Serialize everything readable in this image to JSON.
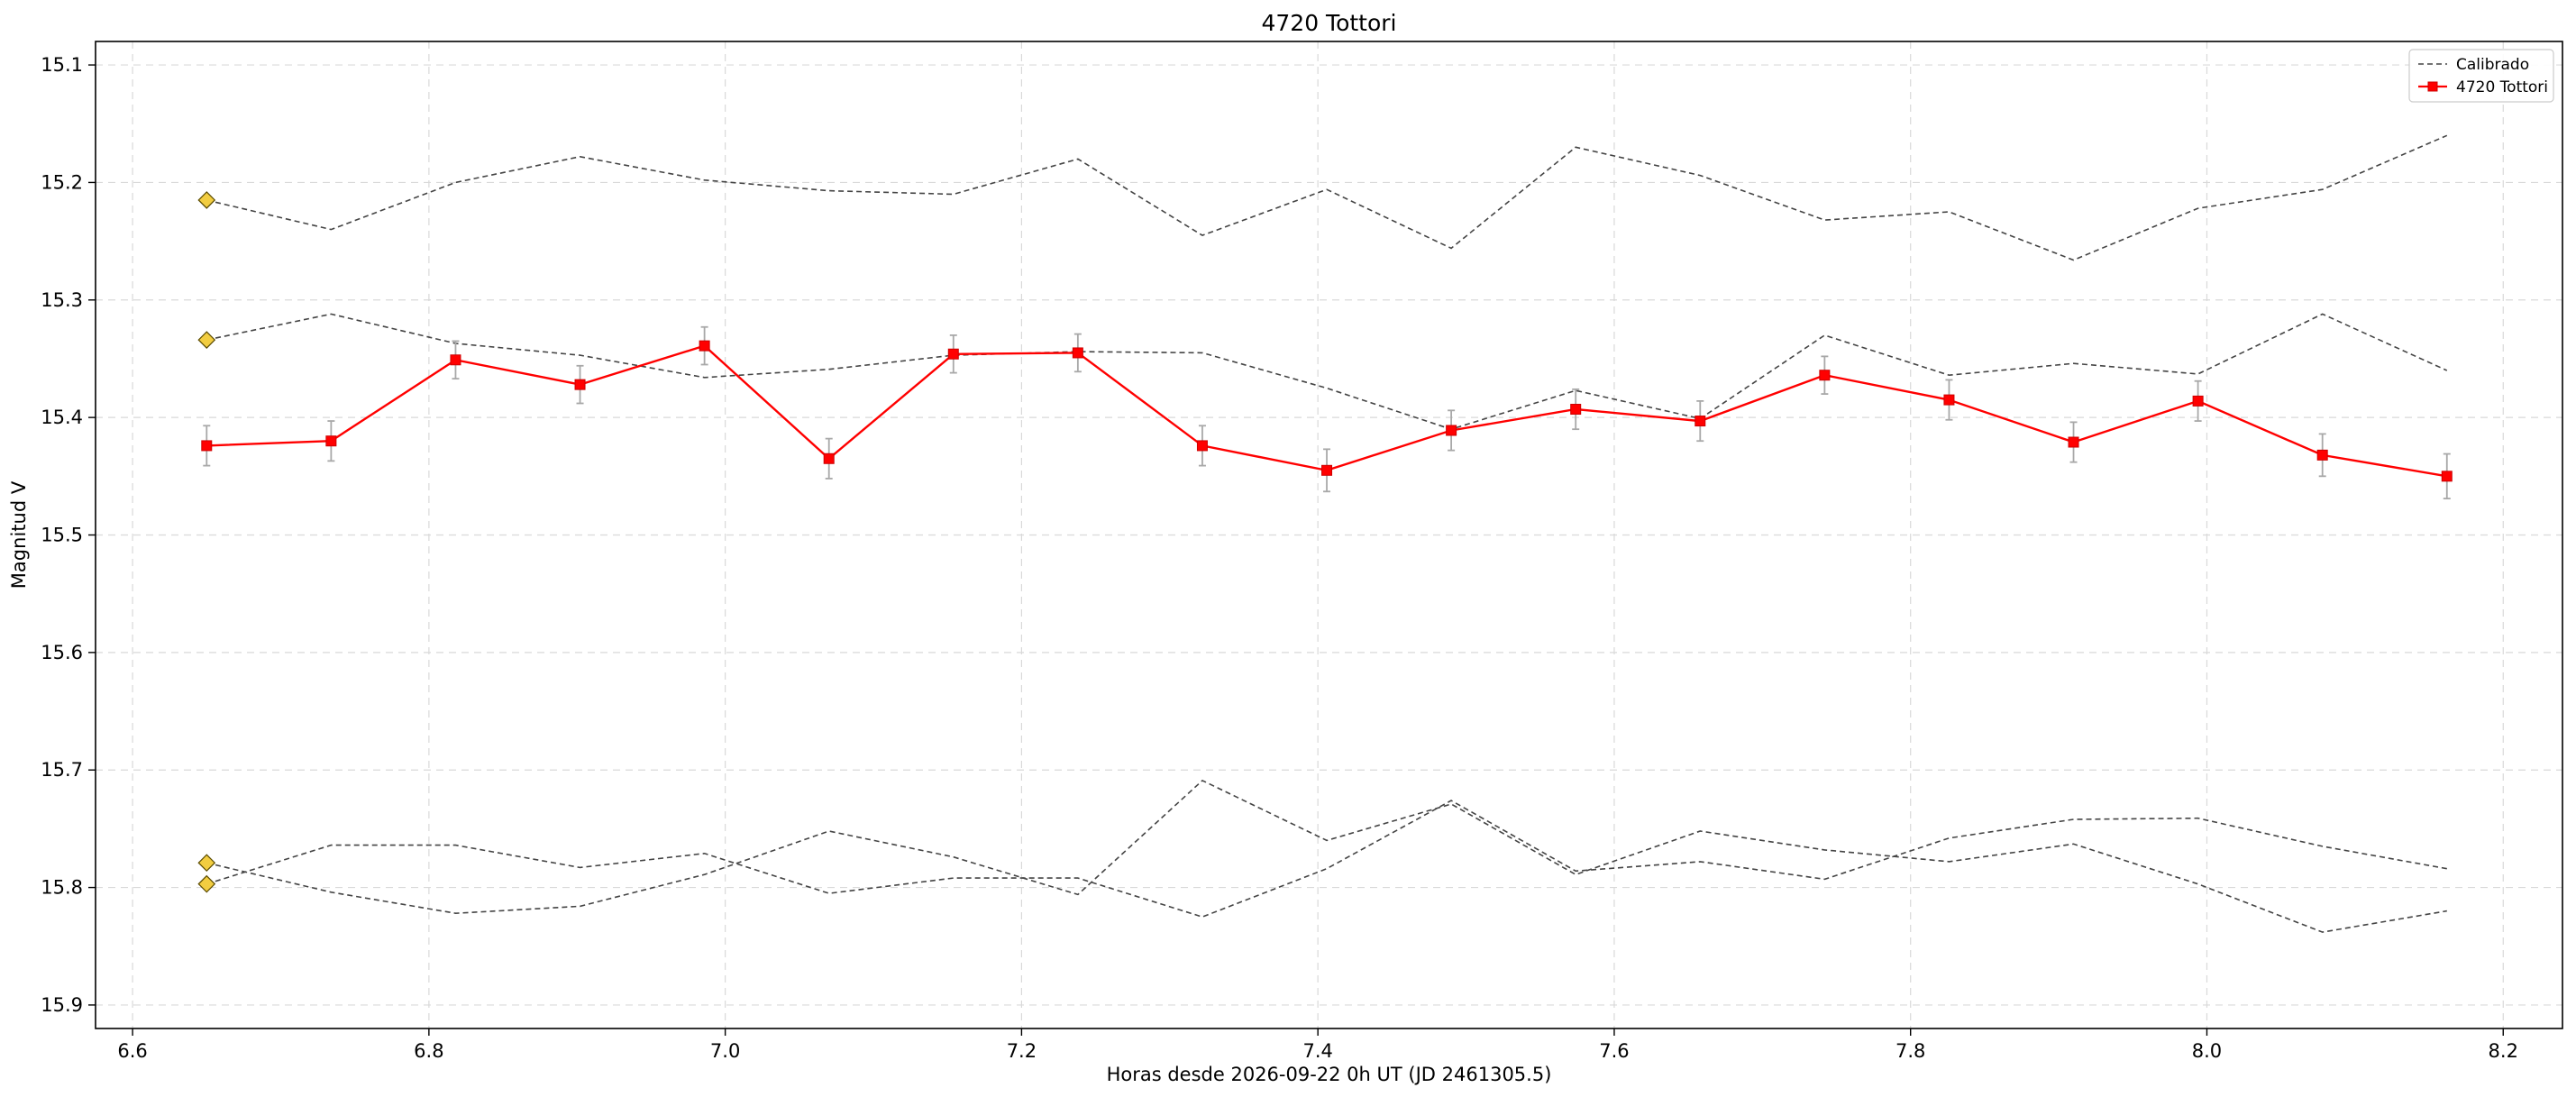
{
  "chart_data": {
    "type": "line",
    "title": "4720 Tottori",
    "xlabel": "Horas desde 2026-09-22 0h UT (JD 2461305.5)",
    "ylabel": "Magnitud V",
    "xlim": [
      6.575,
      8.24
    ],
    "ylim": [
      15.92,
      15.08
    ],
    "y_inverted": true,
    "grid": true,
    "legend_position": "top-right",
    "xticks": [
      "6.6",
      "6.8",
      "7.0",
      "7.2",
      "7.4",
      "7.6",
      "7.8",
      "8.0",
      "8.2"
    ],
    "xtick_values": [
      6.6,
      6.8,
      7.0,
      7.2,
      7.4,
      7.6,
      7.8,
      8.0,
      8.2
    ],
    "yticks": [
      "15.1",
      "15.2",
      "15.3",
      "15.4",
      "15.5",
      "15.6",
      "15.7",
      "15.8",
      "15.9"
    ],
    "ytick_values": [
      15.1,
      15.2,
      15.3,
      15.4,
      15.5,
      15.6,
      15.7,
      15.8,
      15.9
    ],
    "x": [
      6.65,
      6.734,
      6.818,
      6.902,
      6.986,
      7.07,
      7.154,
      7.238,
      7.322,
      7.406,
      7.49,
      7.574,
      7.658,
      7.742,
      7.826,
      7.91,
      7.994,
      8.078,
      8.162
    ],
    "target": {
      "name": "4720 Tottori",
      "color": "#ff0000",
      "values": [
        15.424,
        15.42,
        15.351,
        15.372,
        15.339,
        15.435,
        15.346,
        15.345,
        15.424,
        15.445,
        15.411,
        15.393,
        15.403,
        15.364,
        15.385,
        15.421,
        15.386,
        15.432,
        15.45
      ],
      "errors": [
        0.017,
        0.017,
        0.016,
        0.016,
        0.016,
        0.017,
        0.016,
        0.016,
        0.017,
        0.018,
        0.017,
        0.017,
        0.017,
        0.016,
        0.017,
        0.017,
        0.017,
        0.018,
        0.019
      ]
    },
    "comparison": {
      "name": "Calibrado",
      "color": "#444444",
      "series": [
        {
          "values": [
            15.215,
            15.24,
            15.2,
            15.178,
            15.198,
            15.207,
            15.21,
            15.18,
            15.245,
            15.206,
            15.256,
            15.17,
            15.194,
            15.232,
            15.225,
            15.266,
            15.222,
            15.206,
            15.16
          ]
        },
        {
          "values": [
            15.334,
            15.312,
            15.337,
            15.347,
            15.366,
            15.359,
            15.347,
            15.344,
            15.345,
            15.375,
            15.41,
            15.377,
            15.401,
            15.33,
            15.364,
            15.354,
            15.363,
            15.312,
            15.36
          ]
        },
        {
          "values": [
            15.779,
            15.804,
            15.822,
            15.816,
            15.789,
            15.752,
            15.774,
            15.806,
            15.709,
            15.76,
            15.729,
            15.789,
            15.752,
            15.768,
            15.778,
            15.763,
            15.797,
            15.838,
            15.82
          ]
        },
        {
          "values": [
            15.797,
            15.764,
            15.764,
            15.783,
            15.771,
            15.805,
            15.792,
            15.792,
            15.825,
            15.784,
            15.726,
            15.786,
            15.778,
            15.793,
            15.758,
            15.742,
            15.741,
            15.765,
            15.784
          ]
        }
      ],
      "start_markers_color": "#f2cd41"
    },
    "legend": [
      "Calibrado",
      "4720 Tottori"
    ]
  }
}
